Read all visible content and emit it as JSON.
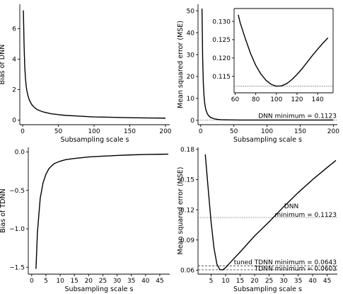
{
  "chart_data": [
    {
      "id": "bias_dnn",
      "type": "line",
      "xlabel": "Subsampling scale s",
      "ylabel": "Bias of DNN",
      "xlim": [
        -4,
        206
      ],
      "ylim": [
        -0.3,
        7.6
      ],
      "xticks": [
        0,
        50,
        100,
        150,
        200
      ],
      "yticks": [
        0,
        2,
        4,
        6
      ],
      "grid": false,
      "series": [
        {
          "x": [
            1,
            2,
            3,
            4,
            5,
            6,
            8,
            10,
            13,
            16,
            20,
            25,
            30,
            40,
            50,
            60,
            75,
            90,
            100,
            120,
            140,
            160,
            180,
            200
          ],
          "y": [
            7.2,
            4.9,
            3.45,
            2.7,
            2.2,
            1.9,
            1.5,
            1.25,
            1.0,
            0.85,
            0.7,
            0.6,
            0.52,
            0.42,
            0.36,
            0.31,
            0.27,
            0.23,
            0.21,
            0.19,
            0.17,
            0.15,
            0.14,
            0.13
          ]
        }
      ]
    },
    {
      "id": "mse_dnn",
      "type": "line",
      "xlabel": "Subsampling scale s",
      "ylabel": "Mean squared error (MSE)",
      "xlim": [
        -4,
        206
      ],
      "ylim": [
        -2,
        53
      ],
      "xticks": [
        0,
        50,
        100,
        150,
        200
      ],
      "yticks": [
        0,
        10,
        20,
        30,
        40,
        50
      ],
      "grid": false,
      "reference_line": {
        "y": 0.1123,
        "style": "dotted"
      },
      "annotations": [
        {
          "text": "DNN minimum = 0.1123"
        }
      ],
      "series": [
        {
          "x": [
            2,
            3,
            4,
            5,
            6,
            7,
            8,
            10,
            12,
            15,
            20,
            25,
            30,
            40,
            50,
            60,
            80,
            100,
            120,
            150,
            180,
            200
          ],
          "y": [
            51,
            28,
            17,
            11.3,
            8,
            6,
            4.6,
            3.0,
            2.1,
            1.3,
            0.7,
            0.45,
            0.3,
            0.2,
            0.16,
            0.135,
            0.12,
            0.1123,
            0.115,
            0.124,
            0.135,
            0.145
          ]
        }
      ],
      "inset": {
        "xlim": [
          59,
          155
        ],
        "ylim": [
          0.1105,
          0.1335
        ],
        "xticks": [
          60,
          80,
          100,
          120,
          140
        ],
        "yticks": [
          0.115,
          0.12,
          0.125,
          0.13
        ],
        "reference_line": {
          "y": 0.1123,
          "style": "dotted"
        },
        "series": [
          {
            "x": [
              63,
              65,
              70,
              75,
              80,
              85,
              90,
              95,
              100,
              105,
              110,
              115,
              120,
              125,
              130,
              135,
              140,
              145,
              150
            ],
            "y": [
              0.1318,
              0.1295,
              0.1252,
              0.1212,
              0.118,
              0.1156,
              0.1139,
              0.1128,
              0.1123,
              0.1124,
              0.113,
              0.1141,
              0.1155,
              0.1171,
              0.1189,
              0.1207,
              0.1224,
              0.124,
              0.1255
            ]
          }
        ]
      }
    },
    {
      "id": "bias_tdnn",
      "type": "line",
      "xlabel": "Subsampling scale s",
      "ylabel": "Bias of TDNN",
      "xlim": [
        -1.2,
        48.5
      ],
      "ylim": [
        -1.59,
        0.06
      ],
      "xticks": [
        0,
        5,
        10,
        15,
        20,
        25,
        30,
        35,
        40,
        45
      ],
      "yticks": [
        0.0,
        -0.5,
        -1.0,
        -1.5
      ],
      "ytick_labels": [
        "0.0",
        "−0.5",
        "−1.0",
        "−1.5"
      ],
      "grid": false,
      "series": [
        {
          "x": [
            1.5,
            2,
            3,
            4,
            5,
            6,
            7,
            8,
            10,
            12,
            15,
            20,
            25,
            30,
            35,
            40,
            45,
            48
          ],
          "y": [
            -1.52,
            -1.05,
            -0.6,
            -0.4,
            -0.29,
            -0.22,
            -0.18,
            -0.15,
            -0.12,
            -0.1,
            -0.085,
            -0.065,
            -0.055,
            -0.045,
            -0.038,
            -0.033,
            -0.03,
            -0.028
          ]
        }
      ]
    },
    {
      "id": "mse_tdnn",
      "type": "line",
      "xlabel": "Subsampling scale s",
      "ylabel": "Mean squared error (MSE)",
      "xlim": [
        0.5,
        48.5
      ],
      "ylim": [
        0.056,
        0.182
      ],
      "xticks": [
        5,
        10,
        15,
        20,
        25,
        30,
        35,
        40,
        45
      ],
      "yticks": [
        0.06,
        0.09,
        0.12,
        0.15,
        0.18
      ],
      "ytick_labels": [
        "0.06",
        "0.09",
        "0.12",
        "0.15",
        "0.18"
      ],
      "grid": false,
      "reference_lines": [
        {
          "y": 0.1123,
          "style": "dotted"
        },
        {
          "y": 0.0643,
          "style": "dashed"
        },
        {
          "y": 0.0603,
          "style": "dashed"
        }
      ],
      "annotations": [
        {
          "text": "DNN"
        },
        {
          "text": "minimum = 0.1123"
        },
        {
          "text": "tuned TDNN minimum = 0.0643"
        },
        {
          "text": "TDNN minimum = 0.0603"
        }
      ],
      "series": [
        {
          "x": [
            3,
            4,
            5,
            6,
            7,
            8,
            9,
            10,
            12,
            15,
            20,
            25,
            30,
            35,
            40,
            45,
            48
          ],
          "y": [
            0.175,
            0.141,
            0.108,
            0.082,
            0.066,
            0.0605,
            0.0603,
            0.0625,
            0.0688,
            0.078,
            0.094,
            0.108,
            0.123,
            0.137,
            0.15,
            0.162,
            0.169
          ]
        }
      ]
    }
  ]
}
